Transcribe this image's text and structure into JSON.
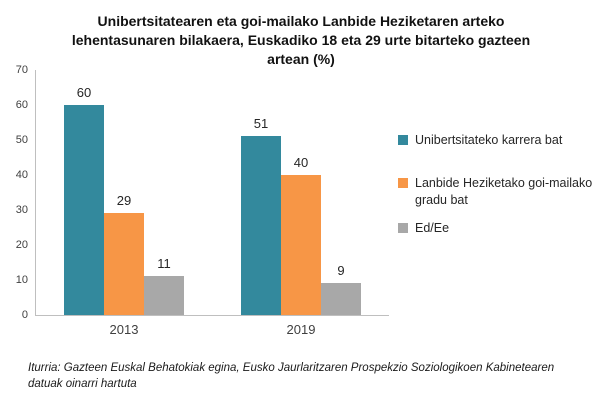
{
  "chart_data": {
    "type": "bar",
    "title": "Unibertsitatearen eta goi-mailako Lanbide Heziketaren arteko lehentasunaren bilakaera, Euskadiko 18 eta 29 urte bitarteko gazteen artean (%)",
    "categories": [
      "2013",
      "2019"
    ],
    "series": [
      {
        "name": "Unibertsitateko karrera bat",
        "color": "#33899D",
        "values": [
          60,
          51
        ]
      },
      {
        "name": "Lanbide Heziketako goi-mailako gradu bat",
        "color": "#F79646",
        "values": [
          29,
          40
        ]
      },
      {
        "name": "Ed/Ee",
        "color": "#A8A8A8",
        "values": [
          11,
          9
        ]
      }
    ],
    "ylim": [
      0,
      70
    ],
    "yticks": [
      0,
      10,
      20,
      30,
      40,
      50,
      60,
      70
    ],
    "grid": false,
    "legend_position": "right",
    "axis_color": "#BFBFBF"
  },
  "source_note": "Iturria: Gazteen Euskal Behatokiak egina, Eusko Jaurlaritzaren Prospekzio Soziologikoen Kabinetearen datuak oinarri hartuta"
}
